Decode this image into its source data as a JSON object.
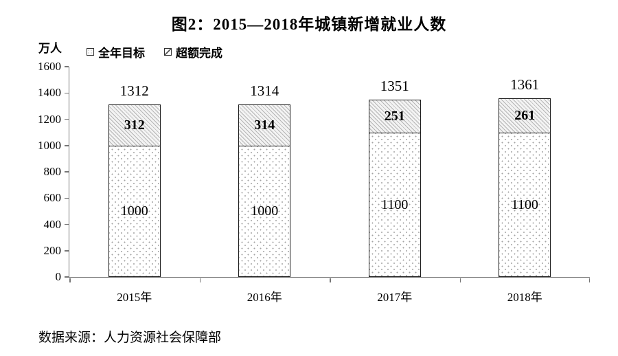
{
  "title": "图2：2015—2018年城镇新增就业人数",
  "y_unit_label": "万人",
  "legend": [
    {
      "label": "全年目标",
      "pattern": "dots"
    },
    {
      "label": "超额完成",
      "pattern": "hatch"
    }
  ],
  "source": "数据来源：人力资源社会保障部",
  "colors": {
    "background": "#ffffff",
    "text": "#000000",
    "axis": "#757575",
    "bar_border": "#1c1c1c",
    "hatch_line": "#b5b5b5",
    "hatch_fill": "#f3f3f3",
    "dot": "#a3a3a3",
    "dot_fill": "#ffffff"
  },
  "chart_data": {
    "type": "bar",
    "stacked": true,
    "categories": [
      "2015年",
      "2016年",
      "2017年",
      "2018年"
    ],
    "series": [
      {
        "name": "全年目标",
        "pattern": "dots",
        "values": [
          1000,
          1000,
          1100,
          1100
        ]
      },
      {
        "name": "超额完成",
        "pattern": "hatch",
        "values": [
          312,
          314,
          251,
          261
        ]
      }
    ],
    "totals": [
      1312,
      1314,
      1351,
      1361
    ],
    "title": "图2：2015—2018年城镇新增就业人数",
    "xlabel": "",
    "ylabel": "万人",
    "ylim": [
      0,
      1600
    ],
    "ytick_step": 200,
    "grid": false,
    "legend_position": "top-left"
  }
}
